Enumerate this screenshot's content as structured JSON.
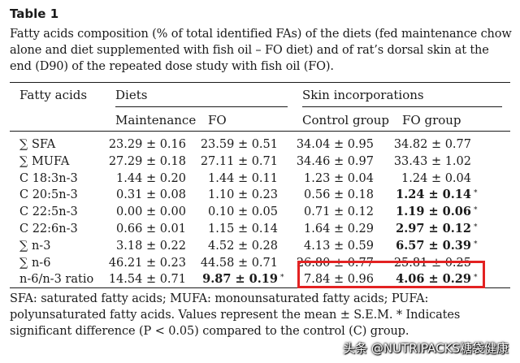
{
  "table": {
    "title": "Table 1",
    "caption": "Fatty acids composition (% of total identified FAs) of the diets (fed maintenance chow alone and diet supplemented with fish oil – FO diet) and of rat’s dorsal skin at the end (D90) of the repeated dose study with fish oil (FO).",
    "headers": {
      "fatty_acids": "Fatty acids",
      "diets": "Diets",
      "skin": "Skin incorporations",
      "maintenance": "Maintenance",
      "fo": "FO",
      "control_group": "Control group",
      "fo_group": "FO group"
    },
    "rows": [
      {
        "label": "∑ SFA",
        "maintenance": "23.29 ± 0.16",
        "fo": "23.59 ± 0.51",
        "control": "34.04 ± 0.95",
        "fo_group": "34.82 ± 0.77"
      },
      {
        "label": "∑ MUFA",
        "maintenance": "27.29 ± 0.18",
        "fo": "27.11 ± 0.71",
        "control": "34.46 ± 0.97",
        "fo_group": "33.43 ± 1.02"
      },
      {
        "label": "C 18:3n-3",
        "maintenance": "1.44 ± 0.20",
        "fo": "1.44 ± 0.11",
        "control": "1.23 ± 0.04",
        "fo_group": "1.24 ± 0.04"
      },
      {
        "label": "C 20:5n-3",
        "maintenance": "0.31 ± 0.08",
        "fo": "1.10 ± 0.23",
        "control": "0.56 ± 0.18",
        "fo_group": "1.24 ± 0.14",
        "fo_group_bold": true,
        "fo_group_star": "*"
      },
      {
        "label": "C 22:5n-3",
        "maintenance": "0.00 ± 0.00",
        "fo": "0.10 ± 0.05",
        "control": "0.71 ± 0.12",
        "fo_group": "1.19 ± 0.06",
        "fo_group_bold": true,
        "fo_group_star": "*"
      },
      {
        "label": "C 22:6n-3",
        "maintenance": "0.66 ± 0.01",
        "fo": "1.15 ± 0.14",
        "control": "1.64 ± 0.29",
        "fo_group": "2.97 ± 0.12",
        "fo_group_bold": true,
        "fo_group_star": "*"
      },
      {
        "label": "∑ n-3",
        "maintenance": "3.18 ± 0.22",
        "fo": "4.52 ± 0.28",
        "control": "4.13 ± 0.59",
        "fo_group": "6.57 ± 0.39",
        "fo_group_bold": true,
        "fo_group_star": "*"
      },
      {
        "label": "∑ n-6",
        "maintenance": "46.21 ± 0.23",
        "fo": "44.58 ± 0.71",
        "control": "26.80 ± 0.77",
        "fo_group": "25.81 ± 0.25"
      },
      {
        "label": "n-6/n-3 ratio",
        "maintenance": "14.54 ± 0.71",
        "fo": "9.87 ± 0.19",
        "control": "7.84 ± 0.96",
        "fo_group": "4.06 ± 0.29",
        "fo_bold": true,
        "fo_star": "*",
        "fo_group_bold": true,
        "fo_group_star": "*"
      }
    ],
    "footnote": "SFA: saturated fatty acids; MUFA: monounsaturated fatty acids; PUFA: polyunsaturated fatty acids. Values represent the mean ± S.E.M. * Indicates significant difference (P < 0.05) compared to the control (C) group."
  },
  "watermark": "头条 @NUTRIPACKS糖袋健康",
  "colors": {
    "highlight": "#e32222",
    "text": "#1a1a1a"
  }
}
